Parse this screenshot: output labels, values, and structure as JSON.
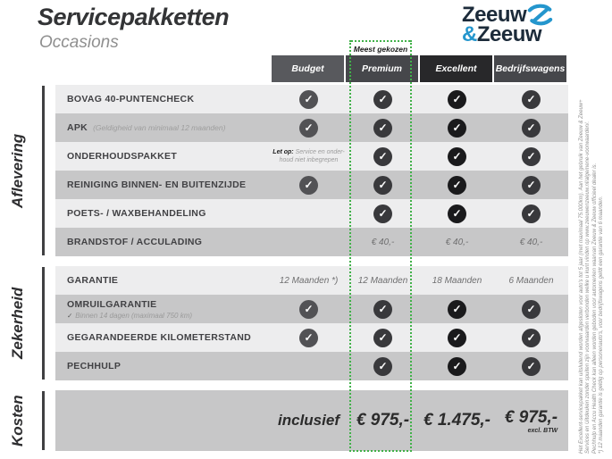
{
  "page": {
    "title": "Servicepakketten",
    "subtitle": "Occasions"
  },
  "logo": {
    "word1": "Zeeuw",
    "amp": "&",
    "word2": "Zeeuw",
    "navy": "#1c2b3a",
    "blue": "#2496cd",
    "z_icon": "zeeuw-z-swoosh-icon"
  },
  "highlight": {
    "badge": "Meest gekozen",
    "border_color": "#41b149"
  },
  "columns": [
    {
      "key": "budget",
      "label": "Budget",
      "header_color": "#58595d",
      "check_color": "#525255"
    },
    {
      "key": "premium",
      "label": "Premium",
      "header_color": "#46474b",
      "check_color": "#39393c",
      "highlight": true
    },
    {
      "key": "excellent",
      "label": "Excellent",
      "header_color": "#28282a",
      "check_color": "#1a1a1c"
    },
    {
      "key": "bedrijfswagens",
      "label": "Bedrijfswagens",
      "header_color": "#46474b",
      "check_color": "#39393c"
    }
  ],
  "sections": [
    {
      "label": "Aflevering",
      "rows": [
        {
          "label": "BOVAG 40-PUNTENCHECK",
          "cells": [
            {
              "type": "check"
            },
            {
              "type": "check"
            },
            {
              "type": "check"
            },
            {
              "type": "check"
            }
          ]
        },
        {
          "label": "APK",
          "inline_note": "(Geldigheid van minimaal 12 maanden)",
          "cells": [
            {
              "type": "check"
            },
            {
              "type": "check"
            },
            {
              "type": "check"
            },
            {
              "type": "check"
            }
          ]
        },
        {
          "label": "ONDERHOUDSPAKKET",
          "cells": [
            {
              "type": "note",
              "lead": "Let op:",
              "lines": [
                "Service en onder-",
                "houd niet inbegrepen"
              ]
            },
            {
              "type": "check"
            },
            {
              "type": "check"
            },
            {
              "type": "check"
            }
          ]
        },
        {
          "label": "REINIGING BINNEN- EN BUITENZIJDE",
          "cells": [
            {
              "type": "check"
            },
            {
              "type": "check"
            },
            {
              "type": "check"
            },
            {
              "type": "check"
            }
          ]
        },
        {
          "label": "POETS- / WAXBEHANDELING",
          "cells": [
            {
              "type": "empty"
            },
            {
              "type": "check"
            },
            {
              "type": "check"
            },
            {
              "type": "check"
            }
          ]
        },
        {
          "label": "BRANDSTOF / ACCULADING",
          "cells": [
            {
              "type": "empty"
            },
            {
              "type": "text",
              "value": "€ 40,-"
            },
            {
              "type": "text",
              "value": "€ 40,-"
            },
            {
              "type": "text",
              "value": "€ 40,-"
            }
          ]
        }
      ]
    },
    {
      "label": "Zekerheid",
      "rows": [
        {
          "label": "GARANTIE",
          "cells": [
            {
              "type": "text",
              "value": "12 Maanden *)"
            },
            {
              "type": "text",
              "value": "12 Maanden"
            },
            {
              "type": "text",
              "value": "18 Maanden"
            },
            {
              "type": "text",
              "value": "6 Maanden"
            }
          ]
        },
        {
          "label": "OMRUILGARANTIE",
          "sub_note": "Binnen 14 dagen (maximaal 750 km)",
          "sub_note_icon": "check-icon",
          "cells": [
            {
              "type": "check"
            },
            {
              "type": "check"
            },
            {
              "type": "check"
            },
            {
              "type": "check"
            }
          ]
        },
        {
          "label": "GEGARANDEERDE KILOMETERSTAND",
          "cells": [
            {
              "type": "check"
            },
            {
              "type": "check"
            },
            {
              "type": "check"
            },
            {
              "type": "check"
            }
          ]
        },
        {
          "label": "PECHHULP",
          "cells": [
            {
              "type": "empty"
            },
            {
              "type": "check"
            },
            {
              "type": "check"
            },
            {
              "type": "check"
            }
          ]
        }
      ]
    }
  ],
  "cost_section": {
    "label": "Kosten",
    "cells": [
      {
        "type": "word",
        "value": "inclusief"
      },
      {
        "type": "price",
        "value": "€ 975,-"
      },
      {
        "type": "price",
        "value": "€ 1.475,-"
      },
      {
        "type": "price",
        "value": "€ 975,-",
        "note": "excl. BTW"
      }
    ]
  },
  "disclaimer": {
    "lines": [
      "Het Excellent-servicepakket kan uitsluitend worden afgesloten voor auto's tot 5 jaar (met maximaal 75.000km). Aan het gebruik van Zeeuw & Zeeuw+",
      "Services en Uitdeuken zonder spuiten zijn voorwaarden verbonden welke u kunt vinden op www.zeeuwenzeeuw.nl/algemene-voorwaarden/.",
      "Pechhulp en Accu Health Check kan alleen worden geboden voor automerken waarvan Zeeuw & Zeeuw officieel dealer is.",
      "*) 12 maanden garantie is geldig op personenauto's, voor bedrijfswagens geldt een garantie van 6 maanden."
    ]
  }
}
